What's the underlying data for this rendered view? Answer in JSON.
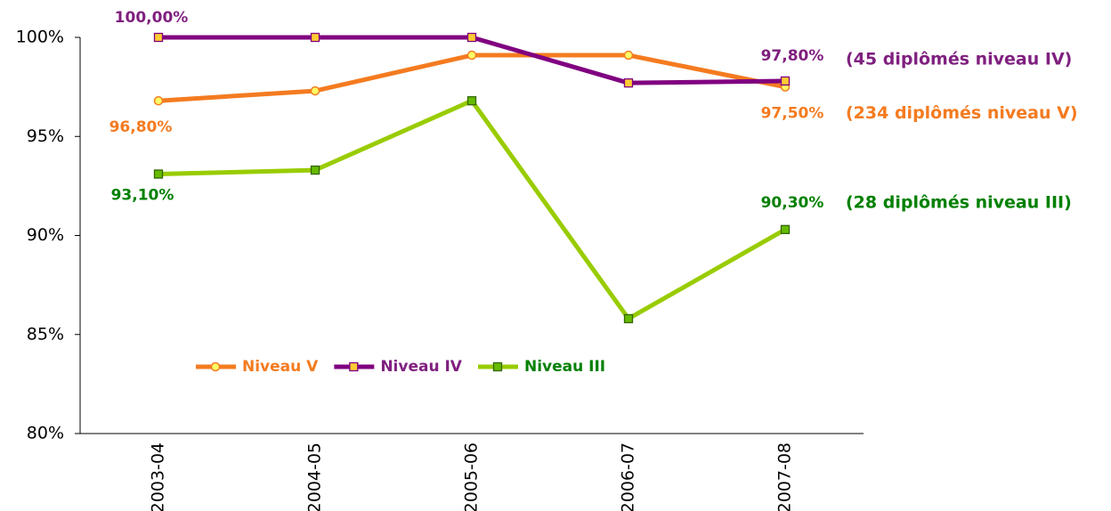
{
  "chart_data": {
    "type": "line",
    "categories": [
      "2003-04",
      "2004-05",
      "2005-06",
      "2006-07",
      "2007-08"
    ],
    "ylim": [
      80,
      100
    ],
    "yticks": [
      {
        "value": 80,
        "label": "80%"
      },
      {
        "value": 85,
        "label": "85%"
      },
      {
        "value": 90,
        "label": "90%"
      },
      {
        "value": 95,
        "label": "95%"
      },
      {
        "value": 100,
        "label": "100%"
      }
    ],
    "legend": "center",
    "series": [
      {
        "name": "Niveau V",
        "color": "#f47b20",
        "label_color": "#f47b20",
        "marker": "circle",
        "marker_fill": "#ffff66",
        "values": [
          96.8,
          97.3,
          99.1,
          99.1,
          97.5
        ],
        "value_labels": [
          "96,80%",
          null,
          null,
          null,
          "97,50%"
        ],
        "note": "(234 diplômés niveau V)"
      },
      {
        "name": "Niveau IV",
        "color": "#800080",
        "label_color": "#7f1f7f",
        "marker": "square",
        "marker_fill": "#ffcc33",
        "values": [
          100,
          100,
          100,
          97.7,
          97.8
        ],
        "value_labels": [
          "100,00%",
          null,
          null,
          null,
          "97,80%"
        ],
        "note": "(45 diplômés niveau IV)"
      },
      {
        "name": "Niveau III",
        "color": "#99cc00",
        "label_color": "#008000",
        "marker": "square",
        "marker_fill": "#66bb00",
        "values": [
          93.1,
          93.3,
          96.8,
          85.8,
          90.3
        ],
        "value_labels": [
          "93,10%",
          null,
          null,
          null,
          "90,30%"
        ],
        "note": "(28 diplômés niveau III)"
      }
    ]
  }
}
